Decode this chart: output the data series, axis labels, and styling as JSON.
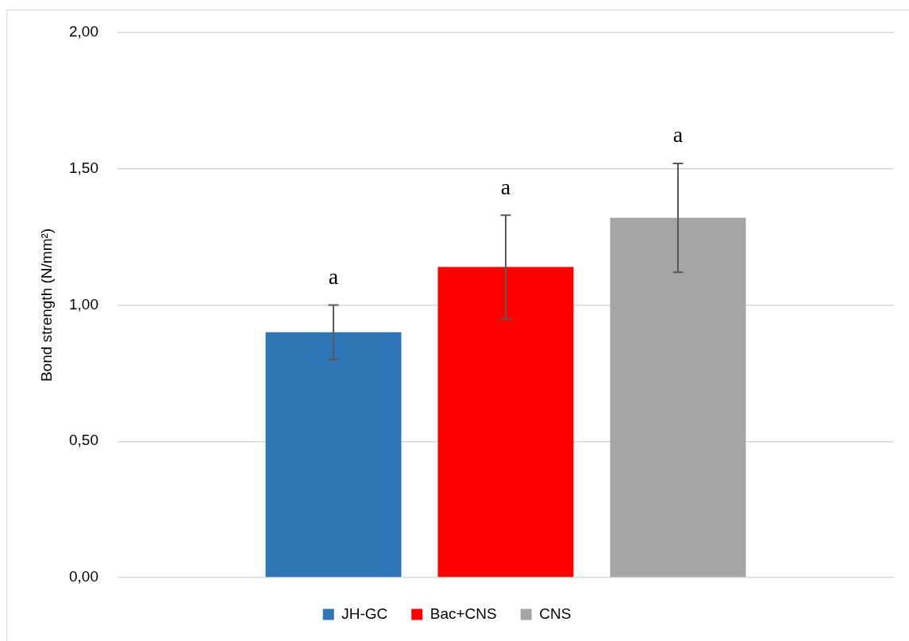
{
  "chart_data": {
    "type": "bar",
    "ylabel": "Bond strength (N/mm²)",
    "categories": [
      null
    ],
    "series": [
      {
        "name": "JH-GC",
        "color": "#2e75b6",
        "values": [
          0.9
        ],
        "errors": [
          0.1
        ]
      },
      {
        "name": "Bac+CNS",
        "color": "#ff0000",
        "values": [
          1.14
        ],
        "errors": [
          0.19
        ]
      },
      {
        "name": "CNS",
        "color": "#a5a5a5",
        "values": [
          1.32
        ],
        "errors": [
          0.2
        ]
      }
    ],
    "ylim": [
      0,
      2
    ],
    "yticks": [
      {
        "value": 0,
        "label": "0,00"
      },
      {
        "value": 0.5,
        "label": "0,50"
      },
      {
        "value": 1,
        "label": "1,00"
      },
      {
        "value": 1.5,
        "label": "1,50"
      },
      {
        "value": 2,
        "label": "2,00"
      }
    ],
    "annotations": [
      "a",
      "a",
      "a"
    ],
    "grid": "y",
    "legend": "bottom",
    "tick_labels": "y"
  }
}
